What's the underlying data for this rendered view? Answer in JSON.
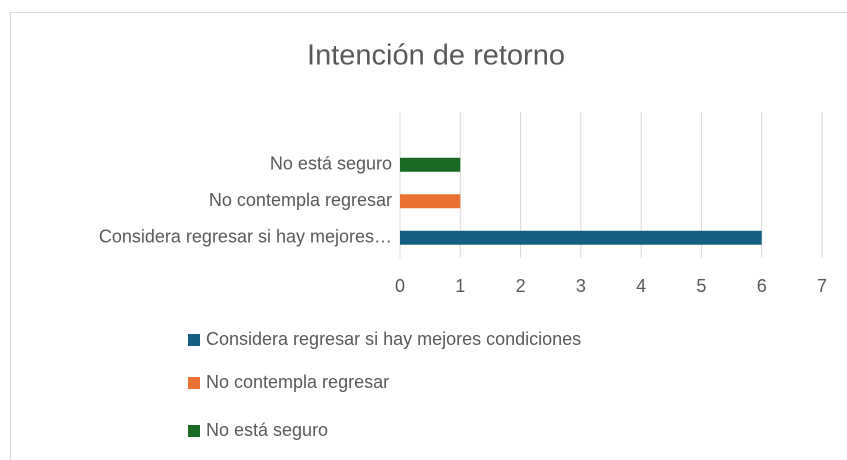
{
  "chart_data": {
    "type": "bar",
    "orientation": "horizontal",
    "title": "Intención de retorno",
    "categories": [
      "Considera regresar si hay mejores…",
      "No contempla regresar",
      "No está seguro"
    ],
    "series": [
      {
        "name": "Considera regresar si hay mejores condiciones",
        "color": "#156082",
        "values": [
          6,
          null,
          null
        ]
      },
      {
        "name": "No contempla regresar",
        "color": "#e97132",
        "values": [
          null,
          1,
          null
        ]
      },
      {
        "name": "No está seguro",
        "color": "#196b24",
        "values": [
          null,
          null,
          1
        ]
      }
    ],
    "xlim": [
      0,
      7
    ],
    "xticks": [
      0,
      1,
      2,
      3,
      4,
      5,
      6,
      7
    ],
    "grid": true,
    "legend": "bottom"
  }
}
